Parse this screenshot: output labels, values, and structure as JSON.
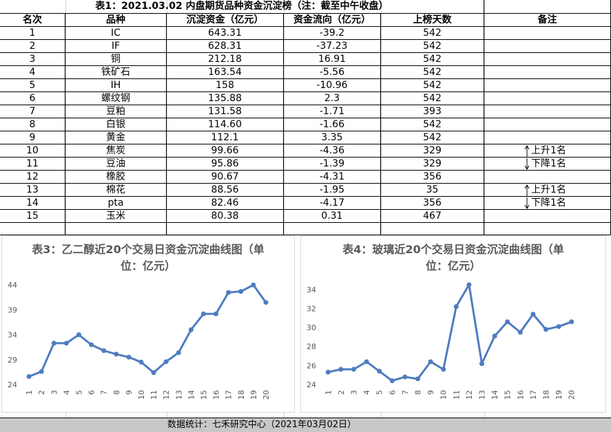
{
  "table": {
    "title": "表1：2021.03.02 内盘期货品种资金沉淀榜（注：截至中午收盘）",
    "headers": [
      "名次",
      "品种",
      "沉淀资金（亿元）",
      "资金流向（亿元）",
      "上榜天数",
      "备注"
    ],
    "rows": [
      [
        "1",
        "IC",
        "643.31",
        "-39.2",
        "542",
        ""
      ],
      [
        "2",
        "IF",
        "628.31",
        "-37.23",
        "542",
        ""
      ],
      [
        "3",
        "铜",
        "212.18",
        "16.91",
        "542",
        ""
      ],
      [
        "4",
        "铁矿石",
        "163.54",
        "-5.56",
        "542",
        ""
      ],
      [
        "5",
        "IH",
        "158",
        "-10.96",
        "542",
        ""
      ],
      [
        "6",
        "螺纹钢",
        "135.88",
        "2.3",
        "542",
        ""
      ],
      [
        "7",
        "豆粕",
        "131.58",
        "-1.71",
        "393",
        ""
      ],
      [
        "8",
        "白银",
        "114.60",
        "-1.66",
        "542",
        ""
      ],
      [
        "9",
        "黄金",
        "112.1",
        "3.35",
        "542",
        ""
      ],
      [
        "10",
        "焦炭",
        "99.66",
        "-4.36",
        "329",
        "上升1名"
      ],
      [
        "11",
        "豆油",
        "95.86",
        "-1.39",
        "329",
        "下降1名"
      ],
      [
        "12",
        "橡胶",
        "90.67",
        "-4.31",
        "356",
        ""
      ],
      [
        "13",
        "棉花",
        "88.56",
        "-1.95",
        "35",
        "上升1名"
      ],
      [
        "14",
        "pta",
        "82.46",
        "-4.17",
        "356",
        "下降1名"
      ],
      [
        "15",
        "玉米",
        "80.38",
        "0.31",
        "467",
        ""
      ]
    ]
  },
  "chart_data": [
    {
      "type": "line",
      "title": "表3：乙二醇近20个交易日资金沉淀曲线图（单位：亿元）",
      "categories": [
        "1",
        "2",
        "3",
        "4",
        "5",
        "6",
        "7",
        "8",
        "9",
        "10",
        "11",
        "12",
        "13",
        "14",
        "15",
        "16",
        "17",
        "18",
        "19",
        "20"
      ],
      "values": [
        25.6,
        26.6,
        32.3,
        32.3,
        34.0,
        32.0,
        30.8,
        30.1,
        29.5,
        28.5,
        26.4,
        28.6,
        30.4,
        35.0,
        38.2,
        38.2,
        42.5,
        42.7,
        44.0,
        40.5
      ],
      "color": "#4f7cc0",
      "ylim": [
        24,
        45
      ],
      "yticks": [
        24,
        29,
        34,
        39,
        44
      ]
    },
    {
      "type": "line",
      "title": "表4：玻璃近20个交易日资金沉淀曲线图（单位：亿元）",
      "categories": [
        "1",
        "2",
        "3",
        "4",
        "5",
        "6",
        "7",
        "8",
        "9",
        "10",
        "11",
        "12",
        "13",
        "14",
        "15",
        "16",
        "17",
        "18",
        "19",
        "20"
      ],
      "values": [
        25.3,
        25.6,
        25.6,
        26.4,
        25.4,
        24.4,
        24.8,
        24.6,
        26.4,
        25.6,
        32.2,
        34.5,
        26.2,
        29.1,
        30.6,
        29.5,
        31.4,
        29.8,
        30.1,
        30.6
      ],
      "color": "#4f7cc0",
      "ylim": [
        24,
        35
      ],
      "yticks": [
        24,
        26,
        28,
        30,
        32,
        34
      ]
    }
  ],
  "footer": "数据统计：七禾研究中心（2021年03月02日）"
}
